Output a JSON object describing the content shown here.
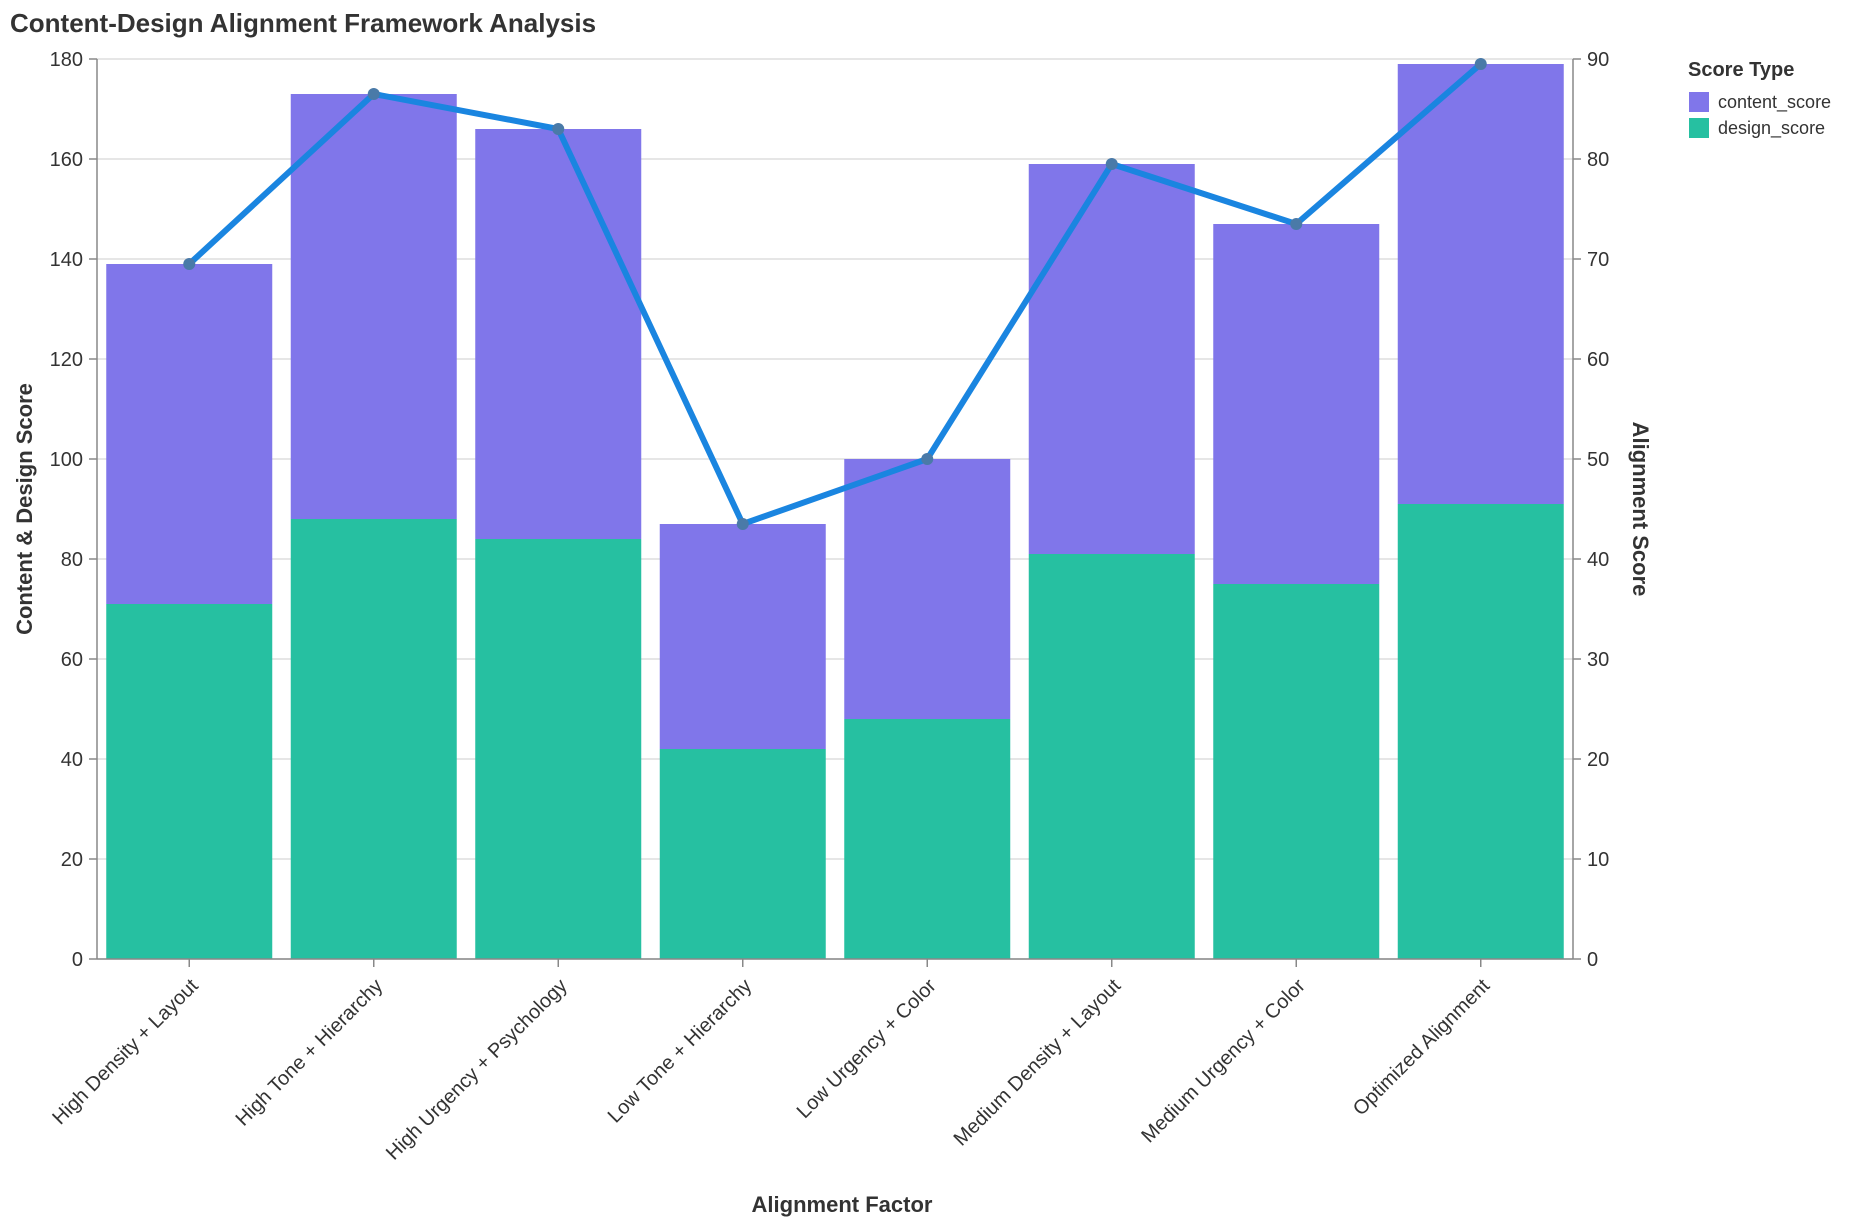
{
  "chart_data": {
    "type": "bar",
    "title": "Content-Design Alignment Framework Analysis",
    "xlabel": "Alignment Factor",
    "ylabel": "Content & Design Score",
    "y2label": "Alignment Score",
    "ylim": [
      0,
      180
    ],
    "y2lim": [
      0,
      90
    ],
    "yticks": [
      0,
      20,
      40,
      60,
      80,
      100,
      120,
      140,
      160,
      180
    ],
    "y2ticks": [
      0,
      10,
      20,
      30,
      40,
      50,
      60,
      70,
      80,
      90
    ],
    "grid": true,
    "stacked": true,
    "categories": [
      "High Density + Layout",
      "High Tone + Hierarchy",
      "High Urgency + Psychology",
      "Low Tone + Hierarchy",
      "Low Urgency + Color",
      "Medium Density + Layout",
      "Medium Urgency + Color",
      "Optimized Alignment"
    ],
    "series": [
      {
        "name": "design_score",
        "color": "#26c0a1",
        "values": [
          71,
          88,
          84,
          42,
          48,
          81,
          75,
          91
        ]
      },
      {
        "name": "content_score",
        "color": "#8076ea",
        "values": [
          68,
          85,
          82,
          45,
          52,
          78,
          72,
          88
        ]
      }
    ],
    "line_series": {
      "axis": "right",
      "color": "#1a85e0",
      "point_color": "#4a7aa8",
      "values": [
        69.5,
        86.5,
        83,
        43.5,
        50,
        79.5,
        73.5,
        89.5
      ]
    },
    "legend": {
      "title": "Score Type",
      "placement": "top-right",
      "entries": [
        {
          "label": "content_score",
          "color": "#8076ea"
        },
        {
          "label": "design_score",
          "color": "#26c0a1"
        }
      ]
    }
  }
}
